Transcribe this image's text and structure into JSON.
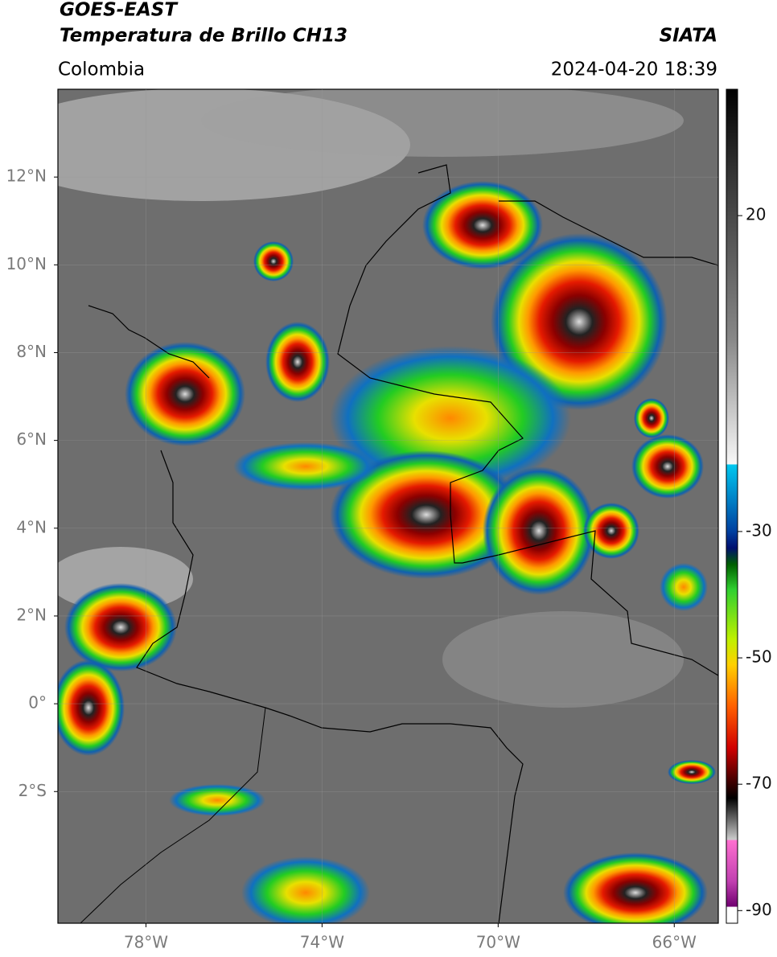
{
  "header": {
    "title": "GOES-EAST",
    "subtitle": "Temperatura de Brillo CH13",
    "source": "SIATA",
    "region": "Colombia",
    "datetime": "2024-04-20 18:39"
  },
  "map": {
    "xlim": [
      -80,
      -65
    ],
    "ylim": [
      -5,
      14
    ],
    "xticks": [
      {
        "value": -78,
        "label": "78°W"
      },
      {
        "value": -74,
        "label": "74°W"
      },
      {
        "value": -70,
        "label": "70°W"
      },
      {
        "value": -66,
        "label": "66°W"
      }
    ],
    "yticks": [
      {
        "value": 12,
        "label": "12°N"
      },
      {
        "value": 10,
        "label": "10°N"
      },
      {
        "value": 8,
        "label": "8°N"
      },
      {
        "value": 6,
        "label": "6°N"
      },
      {
        "value": 4,
        "label": "4°N"
      },
      {
        "value": 2,
        "label": "2°N"
      },
      {
        "value": 0,
        "label": "0°"
      },
      {
        "value": -2,
        "label": "2°S"
      }
    ],
    "grid": true
  },
  "colorbar": {
    "lim": [
      -92,
      40
    ],
    "ticks": [
      20,
      -30,
      -50,
      -70,
      -90
    ]
  }
}
